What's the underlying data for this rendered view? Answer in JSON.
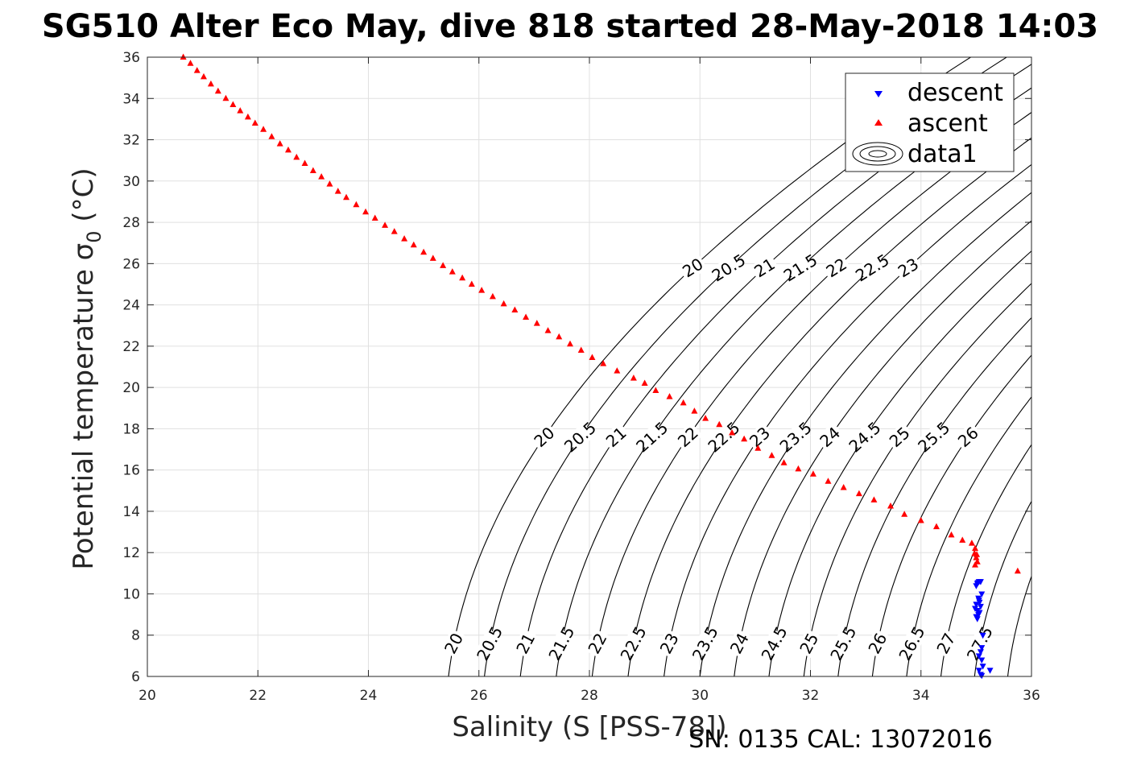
{
  "chart_data": {
    "type": "scatter",
    "title": "SG510 Alter Eco May, dive 818 started 28-May-2018 14:03",
    "xlabel": "Salinity (S [PSS-78])",
    "ylabel_main": "Potential temperature σ",
    "ylabel_sub": "0",
    "ylabel_tail": " (°C)",
    "xlim": [
      20,
      36
    ],
    "ylim": [
      6,
      36
    ],
    "xticks": [
      "20",
      "22",
      "24",
      "26",
      "28",
      "30",
      "32",
      "34",
      "36"
    ],
    "yticks": [
      "6",
      "8",
      "10",
      "12",
      "14",
      "16",
      "18",
      "20",
      "22",
      "24",
      "26",
      "28",
      "30",
      "32",
      "34",
      "36"
    ],
    "grid": true,
    "legend_position": "top-right",
    "legend": [
      "descent",
      "ascent",
      "data1"
    ],
    "series": [
      {
        "name": "descent",
        "marker": "triangle-down",
        "color": "#0000ff",
        "x": [
          35.05,
          35.02,
          35.0,
          35.03,
          35.08,
          35.1,
          35.04,
          35.0,
          34.98,
          35.06,
          35.02,
          35.04,
          35.08,
          35.05,
          35.0,
          35.02,
          35.06,
          35.12,
          35.1,
          35.08,
          35.05,
          35.1,
          35.12,
          35.05,
          35.08,
          35.1,
          35.25
        ],
        "y": [
          10.6,
          10.5,
          10.4,
          10.55,
          10.6,
          10.0,
          9.8,
          9.5,
          9.3,
          9.6,
          9.2,
          9.0,
          9.4,
          9.7,
          8.9,
          8.8,
          9.1,
          8.0,
          7.4,
          7.2,
          7.0,
          6.8,
          6.5,
          6.3,
          6.1,
          6.05,
          6.3
        ]
      },
      {
        "name": "ascent",
        "marker": "triangle-up",
        "color": "#ff0000",
        "x": [
          20.65,
          20.78,
          20.9,
          21.02,
          21.15,
          21.28,
          21.42,
          21.55,
          21.68,
          21.82,
          21.95,
          22.1,
          22.25,
          22.4,
          22.55,
          22.7,
          22.85,
          23.0,
          23.15,
          23.3,
          23.45,
          23.6,
          23.78,
          23.95,
          24.12,
          24.3,
          24.47,
          24.65,
          24.82,
          25.0,
          25.17,
          25.35,
          25.52,
          25.7,
          25.87,
          26.05,
          26.25,
          26.45,
          26.65,
          26.85,
          27.05,
          27.25,
          27.45,
          27.65,
          27.85,
          28.05,
          28.25,
          28.5,
          28.8,
          29.0,
          29.2,
          29.45,
          29.7,
          29.9,
          30.1,
          30.35,
          30.58,
          30.8,
          31.05,
          31.3,
          31.52,
          31.78,
          32.05,
          32.32,
          32.6,
          32.88,
          33.15,
          33.45,
          33.7,
          34.0,
          34.28,
          34.55,
          34.75,
          34.92,
          34.98,
          34.97,
          35.0,
          35.02,
          34.98,
          35.01,
          35.75
        ],
        "y": [
          36.0,
          35.7,
          35.35,
          35.05,
          34.7,
          34.35,
          34.0,
          33.7,
          33.4,
          33.1,
          32.8,
          32.5,
          32.15,
          31.8,
          31.5,
          31.15,
          30.85,
          30.5,
          30.2,
          29.85,
          29.5,
          29.2,
          28.85,
          28.5,
          28.2,
          27.85,
          27.55,
          27.2,
          26.9,
          26.55,
          26.25,
          25.9,
          25.6,
          25.3,
          25.0,
          24.7,
          24.4,
          24.05,
          23.75,
          23.4,
          23.1,
          22.75,
          22.45,
          22.1,
          21.8,
          21.45,
          21.15,
          20.8,
          20.45,
          20.2,
          19.85,
          19.55,
          19.25,
          18.85,
          18.5,
          18.2,
          17.8,
          17.5,
          17.05,
          16.7,
          16.35,
          16.05,
          15.8,
          15.45,
          15.15,
          14.85,
          14.55,
          14.25,
          13.85,
          13.55,
          13.25,
          12.85,
          12.6,
          12.45,
          12.2,
          11.95,
          11.75,
          11.55,
          11.4,
          11.9,
          11.1
        ]
      },
      {
        "name": "data1",
        "type": "contour",
        "color": "#000000",
        "levels_top": [
          "20",
          "20.5",
          "21",
          "21.5",
          "22",
          "22.5",
          "23"
        ],
        "levels_mid": [
          "20",
          "20.5",
          "21",
          "21.5",
          "22",
          "22.5",
          "23",
          "23.5",
          "24",
          "24.5",
          "25",
          "25.5",
          "26"
        ],
        "levels_bottom": [
          "20",
          "20.5",
          "21",
          "21.5",
          "22",
          "22.5",
          "23",
          "23.5",
          "24",
          "24.5",
          "25",
          "25.5",
          "26",
          "26.5",
          "27",
          "27.5"
        ]
      }
    ]
  },
  "footer": "SN: 0135  CAL: 13072016"
}
